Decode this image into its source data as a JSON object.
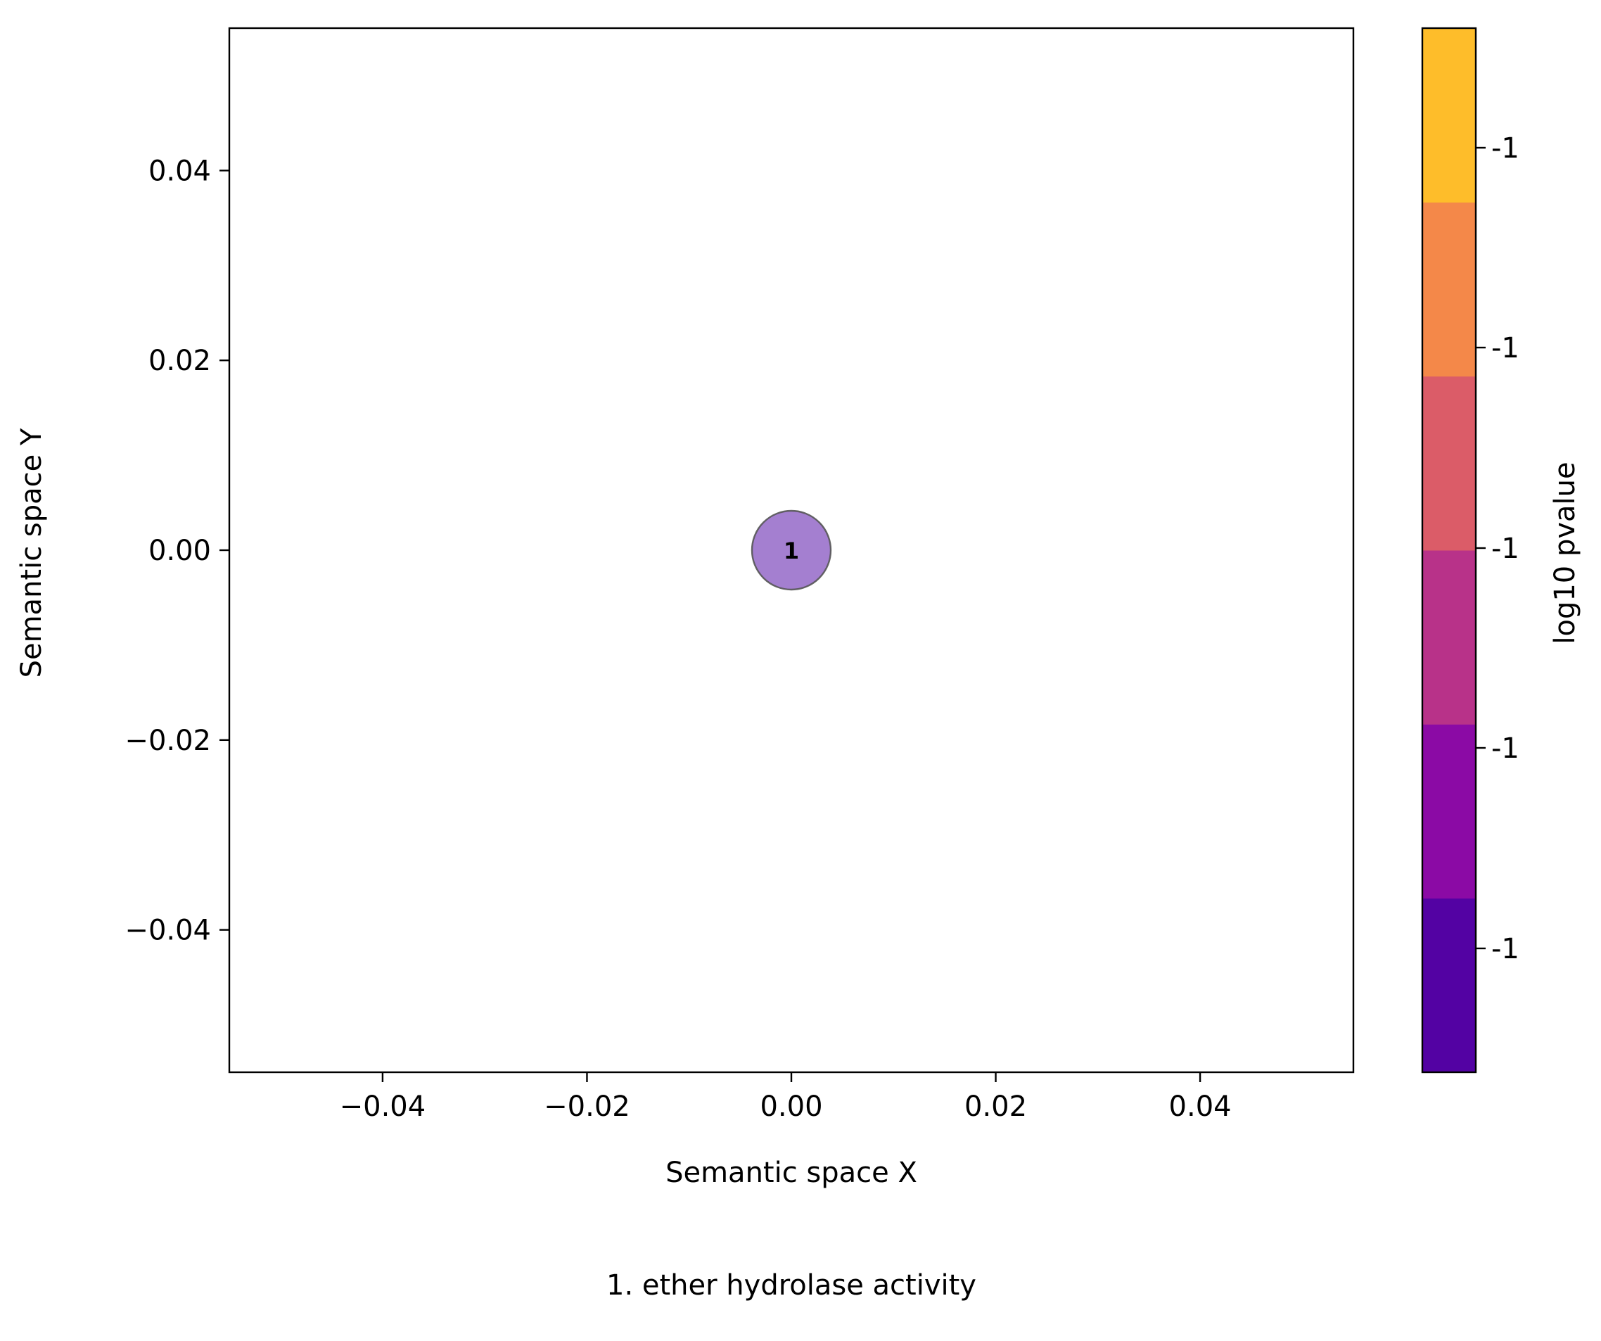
{
  "chart_data": {
    "type": "scatter",
    "title": "",
    "xlabel": "Semantic space X",
    "ylabel": "Semantic space Y",
    "xlim": [
      -0.055,
      0.055
    ],
    "ylim": [
      -0.055,
      0.055
    ],
    "xticks": [
      -0.04,
      -0.02,
      0.0,
      0.02,
      0.04
    ],
    "yticks": [
      -0.04,
      -0.02,
      0.0,
      0.02,
      0.04
    ],
    "xtick_labels": [
      "−0.04",
      "−0.02",
      "0.00",
      "0.02",
      "0.04"
    ],
    "ytick_labels": [
      "−0.04",
      "−0.02",
      "0.00",
      "0.02",
      "0.04"
    ],
    "grid": false,
    "points": [
      {
        "x": 0.0,
        "y": 0.0,
        "label": "1",
        "color": "#a47fd0"
      }
    ],
    "colorbar": {
      "label": "log10 pvalue",
      "colors": [
        "#5302a3",
        "#8b0aa5",
        "#b83289",
        "#db5c68",
        "#f48849",
        "#febd2a"
      ],
      "tick_labels": [
        "-1",
        "-1",
        "-1",
        "-1",
        "-1",
        "-1"
      ]
    },
    "annotations": [
      "1. ether hydrolase activity"
    ]
  }
}
